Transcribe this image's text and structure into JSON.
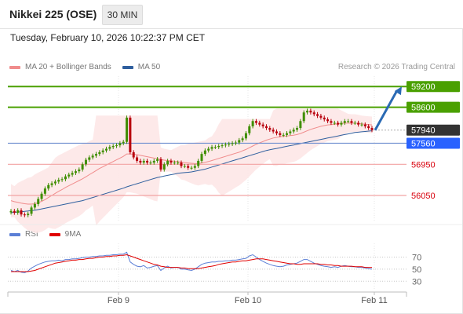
{
  "header": {
    "title": "Nikkei 225 (OSE)",
    "interval": "30 MIN",
    "timestamp": "Tuesday, February 10, 2026 10:22:37 PM CET",
    "credit": "Research © 2026 Trading Central"
  },
  "legend_price": [
    {
      "label": "MA 20 + Bollinger Bands",
      "color": "#f08c8c"
    },
    {
      "label": "MA 50",
      "color": "#2f5f9e"
    }
  ],
  "legend_rsi": [
    {
      "label": "RSI",
      "color": "#5b7fd6"
    },
    {
      "label": "9MA",
      "color": "#e00000"
    }
  ],
  "colors": {
    "target": "#4aa000",
    "current": "#333333",
    "pivot": "#2962ff",
    "support": "#d8000c",
    "up_candle": "#3f8e00",
    "down_candle": "#b8000c",
    "arrow": "#2a6ab4"
  },
  "chart_data": [
    {
      "type": "candlestick",
      "x_ticks": [
        "Feb 9",
        "Feb 10",
        "Feb 11"
      ],
      "y_range": [
        55300,
        59500
      ],
      "levels": [
        {
          "label": "59200",
          "value": 59200,
          "kind": "target"
        },
        {
          "label": "58600",
          "value": 58600,
          "kind": "target"
        },
        {
          "label": "57940",
          "value": 57940,
          "kind": "current"
        },
        {
          "label": "57560",
          "value": 57560,
          "kind": "pivot"
        },
        {
          "label": "56950",
          "value": 56950,
          "kind": "support"
        },
        {
          "label": "56050",
          "value": 56050,
          "kind": "support"
        }
      ],
      "close": [
        55600,
        55550,
        55620,
        55500,
        55480,
        55520,
        55700,
        55800,
        55950,
        56100,
        56250,
        56350,
        56400,
        56450,
        56500,
        56520,
        56600,
        56650,
        56700,
        56750,
        56800,
        56950,
        57080,
        57150,
        57200,
        57250,
        57300,
        57350,
        57400,
        57450,
        57480,
        57500,
        57560,
        57600,
        58300,
        57300,
        57150,
        57050,
        57000,
        57050,
        57000,
        57000,
        57050,
        57100,
        56800,
        56950,
        57050,
        57000,
        57000,
        57000,
        56900,
        56900,
        56850,
        56850,
        56900,
        57050,
        57250,
        57350,
        57400,
        57450,
        57450,
        57480,
        57500,
        57520,
        57540,
        57560,
        57580,
        57650,
        57700,
        57850,
        58050,
        58200,
        58150,
        58100,
        58050,
        58000,
        57950,
        57900,
        57850,
        57800,
        57800,
        57850,
        57900,
        57950,
        58000,
        58200,
        58450,
        58500,
        58450,
        58400,
        58350,
        58300,
        58250,
        58200,
        58150,
        58150,
        58100,
        58150,
        58200,
        58200,
        58150,
        58150,
        58100,
        58100,
        58050,
        58000,
        57940
      ],
      "ma20": [
        55900,
        55870,
        55850,
        55830,
        55810,
        55800,
        55800,
        55810,
        55840,
        55880,
        55930,
        55990,
        56050,
        56110,
        56170,
        56220,
        56280,
        56330,
        56380,
        56430,
        56480,
        56530,
        56590,
        56650,
        56710,
        56770,
        56830,
        56880,
        56930,
        56980,
        57030,
        57080,
        57130,
        57180,
        57250,
        57250,
        57240,
        57230,
        57210,
        57190,
        57170,
        57150,
        57130,
        57120,
        57090,
        57070,
        57060,
        57050,
        57040,
        57030,
        57010,
        57000,
        56990,
        56980,
        56970,
        56970,
        56990,
        57010,
        57030,
        57060,
        57090,
        57120,
        57150,
        57180,
        57210,
        57240,
        57270,
        57300,
        57340,
        57380,
        57430,
        57480,
        57530,
        57570,
        57610,
        57650,
        57680,
        57710,
        57730,
        57750,
        57760,
        57770,
        57780,
        57790,
        57810,
        57840,
        57880,
        57920,
        57960,
        57990,
        58020,
        58050,
        58070,
        58090,
        58100,
        58110,
        58120,
        58130,
        58140,
        58140,
        58140,
        58140,
        58130,
        58120,
        58110,
        58100,
        58090
      ],
      "ma50": [
        55550,
        55560,
        55570,
        55580,
        55590,
        55600,
        55610,
        55620,
        55640,
        55660,
        55680,
        55700,
        55720,
        55740,
        55760,
        55780,
        55800,
        55820,
        55840,
        55860,
        55880,
        55900,
        55930,
        55960,
        55990,
        56020,
        56050,
        56080,
        56110,
        56140,
        56170,
        56200,
        56230,
        56260,
        56300,
        56330,
        56360,
        56390,
        56420,
        56450,
        56480,
        56510,
        56540,
        56570,
        56590,
        56610,
        56630,
        56650,
        56670,
        56690,
        56700,
        56710,
        56720,
        56730,
        56750,
        56770,
        56790,
        56810,
        56840,
        56870,
        56900,
        56930,
        56960,
        56990,
        57020,
        57050,
        57080,
        57110,
        57140,
        57170,
        57200,
        57230,
        57260,
        57290,
        57320,
        57350,
        57370,
        57390,
        57410,
        57430,
        57450,
        57470,
        57490,
        57510,
        57530,
        57550,
        57570,
        57590,
        57610,
        57630,
        57650,
        57670,
        57690,
        57710,
        57730,
        57750,
        57770,
        57790,
        57810,
        57830,
        57850,
        57870,
        57880,
        57890,
        57900,
        57910,
        57920
      ],
      "forecast_arrow": {
        "from": 57940,
        "to": 59200
      }
    },
    {
      "type": "line",
      "title": "RSI",
      "y_ticks": [
        30,
        50,
        70
      ],
      "y_range": [
        20,
        85
      ],
      "series": [
        {
          "name": "RSI",
          "values": [
            48,
            46,
            48,
            45,
            44,
            47,
            52,
            55,
            58,
            60,
            62,
            63,
            64,
            64,
            65,
            64,
            66,
            66,
            67,
            67,
            68,
            69,
            70,
            70,
            71,
            71,
            72,
            72,
            73,
            73,
            74,
            74,
            75,
            75,
            78,
            62,
            58,
            55,
            54,
            56,
            52,
            53,
            55,
            56,
            48,
            52,
            55,
            52,
            53,
            53,
            50,
            50,
            49,
            48,
            50,
            54,
            58,
            60,
            61,
            62,
            62,
            63,
            63,
            64,
            64,
            65,
            65,
            66,
            67,
            68,
            72,
            74,
            70,
            66,
            63,
            60,
            58,
            56,
            55,
            54,
            55,
            57,
            58,
            59,
            60,
            63,
            66,
            66,
            63,
            60,
            58,
            56,
            55,
            54,
            53,
            54,
            53,
            55,
            56,
            55,
            54,
            54,
            53,
            53,
            52,
            51,
            50
          ]
        },
        {
          "name": "9MA",
          "values": [
            46,
            46,
            46,
            46,
            46,
            46,
            47,
            48,
            50,
            52,
            54,
            56,
            58,
            60,
            61,
            62,
            63,
            64,
            65,
            65,
            66,
            66,
            67,
            68,
            68,
            69,
            70,
            70,
            71,
            71,
            72,
            72,
            73,
            73,
            74,
            72,
            70,
            68,
            66,
            64,
            62,
            60,
            58,
            57,
            55,
            54,
            53,
            53,
            53,
            53,
            52,
            52,
            51,
            51,
            51,
            51,
            52,
            53,
            54,
            55,
            56,
            58,
            59,
            60,
            61,
            62,
            62,
            63,
            64,
            64,
            65,
            66,
            67,
            67,
            67,
            66,
            65,
            64,
            63,
            62,
            61,
            60,
            59,
            59,
            58,
            58,
            59,
            59,
            59,
            59,
            59,
            58,
            58,
            57,
            57,
            56,
            56,
            55,
            55,
            55,
            55,
            54,
            54,
            54,
            53,
            53,
            53
          ]
        }
      ]
    }
  ]
}
